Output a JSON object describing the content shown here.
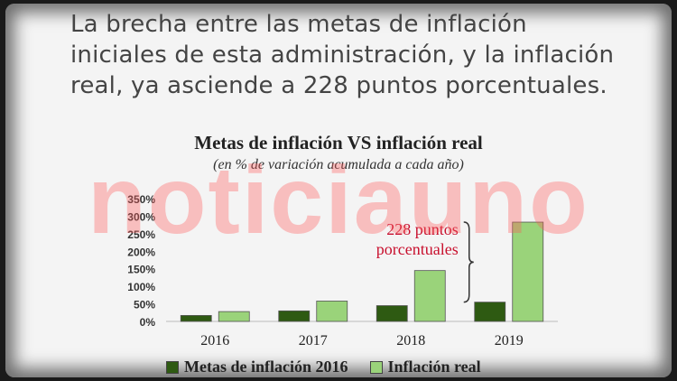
{
  "headline": [
    "La brecha entre las metas de inflación",
    "iniciales de esta administración, y la inflación",
    "real, ya asciende a 228 puntos porcentuales."
  ],
  "watermark": "noticiauno",
  "chart_data": {
    "type": "bar",
    "title": "Metas de inflación VS inflación real",
    "subtitle": "(en % de variación acumulada a cada año)",
    "categories": [
      "2016",
      "2017",
      "2018",
      "2019"
    ],
    "series": [
      {
        "name": "Metas de inflación 2016",
        "values": [
          17,
          30,
          45,
          55
        ],
        "color": "#2e5a12"
      },
      {
        "name": "Inflación real",
        "values": [
          28,
          58,
          145,
          283
        ],
        "color": "#9ad37a"
      }
    ],
    "ylim": [
      0,
      350
    ],
    "yticks": [
      "0%",
      "50%",
      "100%",
      "150%",
      "200%",
      "250%",
      "300%",
      "350%"
    ],
    "annotation": {
      "lines": [
        "228 puntos",
        "porcentuales"
      ],
      "color": "#c8102e"
    },
    "grid": false,
    "legend_position": "bottom"
  }
}
